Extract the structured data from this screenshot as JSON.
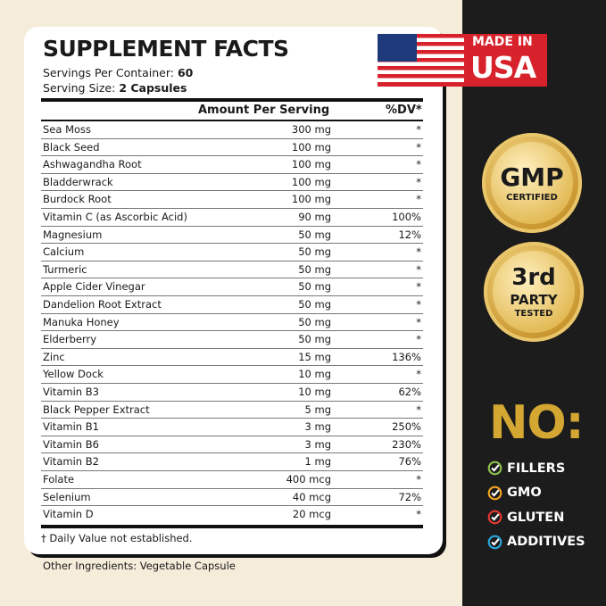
{
  "panel": {
    "title": "SUPPLEMENT FACTS",
    "servings_label": "Servings Per Container:",
    "servings_value": "60",
    "size_label": "Serving Size:",
    "size_value": "2 Capsules",
    "col_amount": "Amount Per Serving",
    "col_dv": "%DV*",
    "rows": [
      {
        "name": "Sea Moss",
        "amount": "300 mg",
        "dv": "*"
      },
      {
        "name": "Black Seed",
        "amount": "100 mg",
        "dv": "*"
      },
      {
        "name": "Ashwagandha Root",
        "amount": "100 mg",
        "dv": "*"
      },
      {
        "name": "Bladderwrack",
        "amount": "100 mg",
        "dv": "*"
      },
      {
        "name": "Burdock Root",
        "amount": "100 mg",
        "dv": "*"
      },
      {
        "name": "Vitamin C (as Ascorbic Acid)",
        "amount": "90 mg",
        "dv": "100%"
      },
      {
        "name": "Magnesium",
        "amount": "50 mg",
        "dv": "12%"
      },
      {
        "name": "Calcium",
        "amount": "50 mg",
        "dv": "*"
      },
      {
        "name": "Turmeric",
        "amount": "50 mg",
        "dv": "*"
      },
      {
        "name": "Apple Cider Vinegar",
        "amount": "50 mg",
        "dv": "*"
      },
      {
        "name": "Dandelion Root Extract",
        "amount": "50 mg",
        "dv": "*"
      },
      {
        "name": "Manuka Honey",
        "amount": "50 mg",
        "dv": "*"
      },
      {
        "name": "Elderberry",
        "amount": "50 mg",
        "dv": "*"
      },
      {
        "name": "Zinc",
        "amount": "15 mg",
        "dv": "136%"
      },
      {
        "name": "Yellow Dock",
        "amount": "10 mg",
        "dv": "*"
      },
      {
        "name": "Vitamin B3",
        "amount": "10 mg",
        "dv": "62%"
      },
      {
        "name": "Black Pepper Extract",
        "amount": "5 mg",
        "dv": "*"
      },
      {
        "name": "Vitamin B1",
        "amount": "3 mg",
        "dv": "250%"
      },
      {
        "name": "Vitamin B6",
        "amount": "3 mg",
        "dv": "230%"
      },
      {
        "name": "Vitamin B2",
        "amount": "1 mg",
        "dv": "76%"
      },
      {
        "name": "Folate",
        "amount": "400 mcg",
        "dv": "*"
      },
      {
        "name": "Selenium",
        "amount": "40 mcg",
        "dv": "72%"
      },
      {
        "name": "Vitamin D",
        "amount": "20 mcg",
        "dv": "*"
      }
    ],
    "footnote": "† Daily Value not established.",
    "other": "Other Ingredients: Vegetable Capsule"
  },
  "badges": {
    "usa_line1": "MADE IN",
    "usa_line2": "USA",
    "gmp_main": "GMP",
    "gmp_sub": "CERTIFIED",
    "third_main": "3rd",
    "third_mid": "PARTY",
    "third_sub": "TESTED"
  },
  "no": {
    "title": "NO:",
    "items": [
      {
        "label": "FILLERS",
        "color": "#8bc34a"
      },
      {
        "label": "GMO",
        "color": "#f5a623"
      },
      {
        "label": "GLUTEN",
        "color": "#e53935"
      },
      {
        "label": "ADDITIVES",
        "color": "#29a8e0"
      }
    ]
  }
}
